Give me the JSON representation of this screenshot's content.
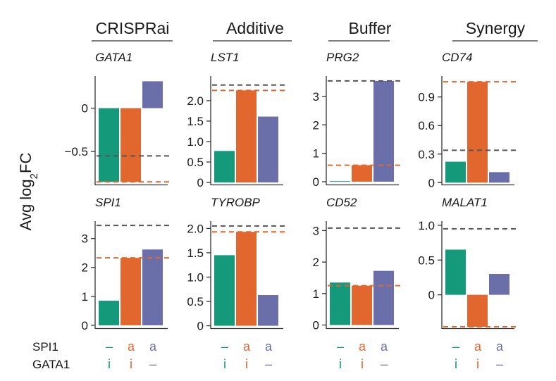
{
  "colors": {
    "green": "#149a7a",
    "orange": "#e1672f",
    "purple": "#6b6fa9",
    "gray": "#555555",
    "axis": "#333333"
  },
  "y_label": {
    "prefix": "Avg log",
    "sub": "2",
    "suffix": "FC"
  },
  "columns": [
    "CRISPRai",
    "Additive",
    "Buffer",
    "Synergy"
  ],
  "conditions": {
    "labels": [
      "SPI1",
      "GATA1"
    ],
    "spi1": [
      {
        "text": "–",
        "color": "#149a7a"
      },
      {
        "text": "a",
        "color": "#e1672f"
      },
      {
        "text": "a",
        "color": "#6b6fa9"
      }
    ],
    "gata1": [
      {
        "text": "i",
        "color": "#149a7a"
      },
      {
        "text": "i",
        "color": "#e1672f"
      },
      {
        "text": "–",
        "color": "#6b6fa9"
      }
    ]
  },
  "chart_data": [
    {
      "type": "bar",
      "gene": "GATA1",
      "column": "CRISPRai",
      "row": 0,
      "categories": [
        "SPI1–/GATA1i",
        "SPI1a/GATA1i",
        "SPI1a/GATA1–"
      ],
      "values": [
        -0.85,
        -0.85,
        0.31
      ],
      "ylim": [
        -0.88,
        0.37
      ],
      "yticks": [
        0,
        -0.5
      ],
      "tick_labels": [
        "0",
        "−0.5"
      ],
      "additive_line": -0.55,
      "orange_line": -0.85
    },
    {
      "type": "bar",
      "gene": "LST1",
      "column": "Additive",
      "row": 0,
      "categories": [
        "SPI1–/GATA1i",
        "SPI1a/GATA1i",
        "SPI1a/GATA1–"
      ],
      "values": [
        0.77,
        2.25,
        1.61
      ],
      "ylim": [
        -0.05,
        2.6
      ],
      "yticks": [
        0,
        0.5,
        1,
        1.5,
        2
      ],
      "tick_labels": [
        "0",
        "0.5",
        "1.0",
        "1.5",
        "2.0"
      ],
      "additive_line": 2.38,
      "orange_line": 2.25
    },
    {
      "type": "bar",
      "gene": "PRG2",
      "column": "Buffer",
      "row": 0,
      "categories": [
        "SPI1–/GATA1i",
        "SPI1a/GATA1i",
        "SPI1a/GATA1–"
      ],
      "values": [
        0.02,
        0.58,
        3.55
      ],
      "ylim": [
        -0.1,
        3.72
      ],
      "yticks": [
        0,
        1,
        2,
        3
      ],
      "tick_labels": [
        "0",
        "1",
        "2",
        "3"
      ],
      "additive_line": 3.55,
      "orange_line": 0.58
    },
    {
      "type": "bar",
      "gene": "CD74",
      "column": "Synergy",
      "row": 0,
      "categories": [
        "SPI1–/GATA1i",
        "SPI1a/GATA1i",
        "SPI1a/GATA1–"
      ],
      "values": [
        0.22,
        1.06,
        0.11
      ],
      "ylim": [
        -0.02,
        1.12
      ],
      "yticks": [
        0,
        0.3,
        0.6,
        0.9
      ],
      "tick_labels": [
        "0",
        "0.3",
        "0.6",
        "0.9"
      ],
      "additive_line": 0.34,
      "orange_line": 1.06
    },
    {
      "type": "bar",
      "gene": "SPI1",
      "column": "CRISPRai",
      "row": 1,
      "categories": [
        "SPI1–/GATA1i",
        "SPI1a/GATA1i",
        "SPI1a/GATA1–"
      ],
      "values": [
        0.85,
        2.33,
        2.62
      ],
      "ylim": [
        -0.1,
        3.6
      ],
      "yticks": [
        0,
        1,
        2,
        3
      ],
      "tick_labels": [
        "0",
        "1",
        "2",
        "3"
      ],
      "additive_line": 3.45,
      "orange_line": 2.33
    },
    {
      "type": "bar",
      "gene": "TYROBP",
      "column": "Additive",
      "row": 1,
      "categories": [
        "SPI1–/GATA1i",
        "SPI1a/GATA1i",
        "SPI1a/GATA1–"
      ],
      "values": [
        1.45,
        1.93,
        0.63
      ],
      "ylim": [
        -0.05,
        2.15
      ],
      "yticks": [
        0,
        0.5,
        1,
        1.5,
        2
      ],
      "tick_labels": [
        "0",
        "0.5",
        "1.0",
        "1.5",
        "2.0"
      ],
      "additive_line": 2.05,
      "orange_line": 1.93
    },
    {
      "type": "bar",
      "gene": "CD52",
      "column": "Buffer",
      "row": 1,
      "categories": [
        "SPI1–/GATA1i",
        "SPI1a/GATA1i",
        "SPI1a/GATA1–"
      ],
      "values": [
        1.35,
        1.25,
        1.72
      ],
      "ylim": [
        -0.1,
        3.3
      ],
      "yticks": [
        0,
        1,
        2,
        3
      ],
      "tick_labels": [
        "0",
        "1",
        "2",
        "3"
      ],
      "additive_line": 3.08,
      "orange_line": 1.25
    },
    {
      "type": "bar",
      "gene": "MALAT1",
      "column": "Synergy",
      "row": 1,
      "categories": [
        "SPI1–/GATA1i",
        "SPI1a/GATA1i",
        "SPI1a/GATA1–"
      ],
      "values": [
        0.65,
        -0.46,
        0.3
      ],
      "ylim": [
        -0.48,
        1.06
      ],
      "yticks": [
        0,
        0.5,
        1
      ],
      "tick_labels": [
        "0",
        "0.5",
        "1.0"
      ],
      "additive_line": 0.95,
      "orange_line": -0.46
    }
  ]
}
